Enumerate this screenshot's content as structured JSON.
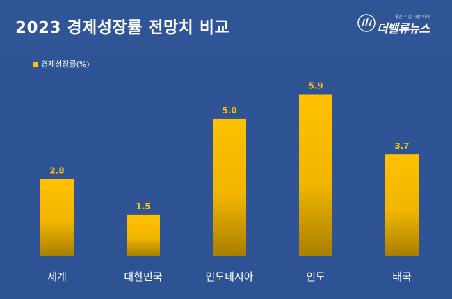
{
  "header": {
    "title": "2023 경제성장률 전망치 비교"
  },
  "logo": {
    "text": "더밸류뉴스",
    "tagline": "좋은 기업 사람 미래"
  },
  "colors": {
    "background": "#2f5597",
    "bar_top": "#ffc000",
    "bar_bottom": "#a87f00",
    "text": "#ffffff",
    "value_label": "#ffc000"
  },
  "chart_data": {
    "type": "bar",
    "categories": [
      "세계",
      "대한민국",
      "인도네시아",
      "인도",
      "태국"
    ],
    "series": [
      {
        "name": "경제성장률(%)",
        "values": [
          2.8,
          1.5,
          5.0,
          5.9,
          3.7
        ]
      }
    ],
    "value_labels": [
      "2.8",
      "1.5",
      "5.0",
      "5.9",
      "3.7"
    ],
    "ylim": [
      0,
      6.8
    ],
    "grid": false,
    "legend": "top-left"
  }
}
